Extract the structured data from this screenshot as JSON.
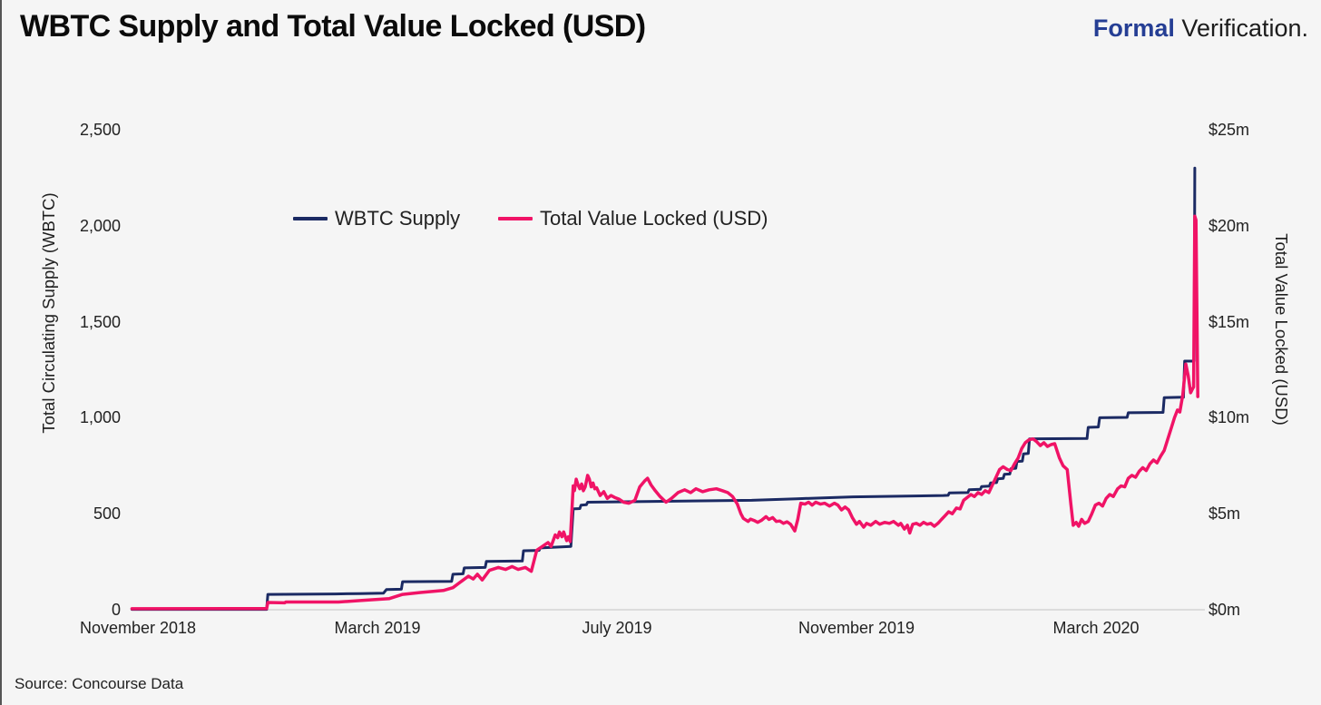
{
  "page": {
    "title": "WBTC Supply and Total Value Locked (USD)",
    "brand_bold": "Formal",
    "brand_light": "Verification.",
    "source": "Source: Concourse Data"
  },
  "colors": {
    "background": "#f5f5f5",
    "wbtc_supply_line": "#1b2a63",
    "tvl_line": "#f01366",
    "brand_navy": "#253e94",
    "axis_line": "#dcdcdc",
    "left_border": "#555555"
  },
  "chart_data": {
    "type": "line",
    "title": "WBTC Supply and Total Value Locked (USD)",
    "grid": false,
    "legend_position": "top-center-inside",
    "x_unit": "months since November 2018",
    "x_range": [
      -0.1,
      17.7
    ],
    "x_tick_labels": [
      "November 2018",
      "March 2019",
      "July 2019",
      "November 2019",
      "March 2020"
    ],
    "x_ticks_m": [
      0,
      4,
      8,
      12,
      16
    ],
    "y_left": {
      "label": "Total Circulating Supply (WBTC)",
      "range": [
        0,
        2500
      ],
      "tick_labels": [
        "2,500",
        "2,000",
        "1,500",
        "1,000",
        "500",
        "0"
      ]
    },
    "y_right": {
      "label": "Total Value Locked (USD)",
      "range": [
        0,
        25
      ],
      "tick_labels": [
        "$25m",
        "$20m",
        "$15m",
        "$10m",
        "$5m",
        "$0m"
      ]
    },
    "legend": [
      {
        "label": "WBTC Supply",
        "color": "#1b2a63"
      },
      {
        "label": "Total Value Locked (USD)",
        "color": "#f01366"
      }
    ],
    "series": [
      {
        "name": "WBTC Supply",
        "axis": "left",
        "color": "#1b2a63",
        "width": 3,
        "points": [
          [
            -0.1,
            2
          ],
          [
            2.15,
            2
          ],
          [
            2.17,
            80
          ],
          [
            3.3,
            82
          ],
          [
            3.7,
            84
          ],
          [
            4.1,
            86
          ],
          [
            4.15,
            105
          ],
          [
            4.4,
            107
          ],
          [
            4.42,
            146
          ],
          [
            5.24,
            148
          ],
          [
            5.26,
            185
          ],
          [
            5.43,
            187
          ],
          [
            5.45,
            218
          ],
          [
            5.8,
            220
          ],
          [
            5.82,
            252
          ],
          [
            6.42,
            254
          ],
          [
            6.44,
            307
          ],
          [
            6.7,
            309
          ],
          [
            6.72,
            322
          ],
          [
            7.23,
            330
          ],
          [
            7.27,
            525
          ],
          [
            7.38,
            527
          ],
          [
            7.4,
            545
          ],
          [
            7.49,
            547
          ],
          [
            7.51,
            560
          ],
          [
            8.3,
            563
          ],
          [
            10.25,
            570
          ],
          [
            11.0,
            578
          ],
          [
            11.94,
            588
          ],
          [
            13.45,
            595
          ],
          [
            13.53,
            596
          ],
          [
            13.55,
            608
          ],
          [
            13.86,
            610
          ],
          [
            13.88,
            625
          ],
          [
            14.07,
            627
          ],
          [
            14.09,
            642
          ],
          [
            14.22,
            644
          ],
          [
            14.24,
            660
          ],
          [
            14.34,
            662
          ],
          [
            14.36,
            682
          ],
          [
            14.45,
            684
          ],
          [
            14.47,
            705
          ],
          [
            14.56,
            707
          ],
          [
            14.58,
            735
          ],
          [
            14.66,
            737
          ],
          [
            14.68,
            772
          ],
          [
            14.77,
            774
          ],
          [
            14.79,
            812
          ],
          [
            14.87,
            814
          ],
          [
            14.89,
            890
          ],
          [
            15.85,
            892
          ],
          [
            15.87,
            950
          ],
          [
            16.04,
            952
          ],
          [
            16.06,
            1000
          ],
          [
            16.52,
            1002
          ],
          [
            16.54,
            1026
          ],
          [
            17.12,
            1028
          ],
          [
            17.14,
            1105
          ],
          [
            17.46,
            1107
          ],
          [
            17.48,
            1295
          ],
          [
            17.64,
            1295
          ],
          [
            17.65,
            2300
          ]
        ]
      },
      {
        "name": "Total Value Locked (USD)",
        "axis": "right",
        "color": "#f01366",
        "width": 3.5,
        "points": [
          [
            -0.1,
            0.05
          ],
          [
            2.15,
            0.06
          ],
          [
            2.17,
            0.38
          ],
          [
            2.45,
            0.36
          ],
          [
            2.47,
            0.4
          ],
          [
            3.35,
            0.4
          ],
          [
            3.74,
            0.48
          ],
          [
            4.2,
            0.58
          ],
          [
            4.42,
            0.8
          ],
          [
            4.72,
            0.9
          ],
          [
            5.1,
            1.0
          ],
          [
            5.26,
            1.15
          ],
          [
            5.41,
            1.5
          ],
          [
            5.52,
            1.75
          ],
          [
            5.6,
            1.6
          ],
          [
            5.67,
            1.85
          ],
          [
            5.75,
            1.55
          ],
          [
            5.87,
            2.05
          ],
          [
            6.02,
            2.2
          ],
          [
            6.14,
            2.1
          ],
          [
            6.25,
            2.25
          ],
          [
            6.35,
            2.1
          ],
          [
            6.47,
            2.2
          ],
          [
            6.57,
            2.0
          ],
          [
            6.66,
            3.1
          ],
          [
            6.78,
            3.35
          ],
          [
            6.85,
            3.5
          ],
          [
            6.9,
            3.3
          ],
          [
            6.97,
            3.9
          ],
          [
            7.01,
            3.75
          ],
          [
            7.04,
            4.05
          ],
          [
            7.08,
            3.8
          ],
          [
            7.11,
            4.05
          ],
          [
            7.16,
            3.6
          ],
          [
            7.19,
            3.8
          ],
          [
            7.22,
            3.55
          ],
          [
            7.27,
            6.45
          ],
          [
            7.29,
            6.2
          ],
          [
            7.32,
            6.8
          ],
          [
            7.35,
            6.5
          ],
          [
            7.38,
            6.3
          ],
          [
            7.41,
            6.55
          ],
          [
            7.44,
            6.2
          ],
          [
            7.47,
            6.4
          ],
          [
            7.51,
            7.0
          ],
          [
            7.54,
            6.8
          ],
          [
            7.57,
            6.4
          ],
          [
            7.6,
            6.6
          ],
          [
            7.63,
            6.3
          ],
          [
            7.66,
            6.35
          ],
          [
            7.72,
            5.95
          ],
          [
            7.78,
            6.15
          ],
          [
            7.84,
            5.8
          ],
          [
            7.9,
            5.95
          ],
          [
            7.96,
            5.85
          ],
          [
            8.04,
            5.75
          ],
          [
            8.11,
            5.6
          ],
          [
            8.2,
            5.55
          ],
          [
            8.3,
            5.7
          ],
          [
            8.38,
            6.4
          ],
          [
            8.46,
            6.7
          ],
          [
            8.51,
            6.85
          ],
          [
            8.57,
            6.5
          ],
          [
            8.64,
            6.2
          ],
          [
            8.72,
            5.9
          ],
          [
            8.82,
            5.6
          ],
          [
            8.91,
            5.8
          ],
          [
            9.02,
            6.1
          ],
          [
            9.13,
            6.25
          ],
          [
            9.23,
            6.1
          ],
          [
            9.32,
            6.3
          ],
          [
            9.43,
            6.15
          ],
          [
            9.54,
            6.25
          ],
          [
            9.66,
            6.3
          ],
          [
            9.76,
            6.2
          ],
          [
            9.85,
            6.1
          ],
          [
            9.93,
            5.9
          ],
          [
            10.01,
            5.5
          ],
          [
            10.07,
            5.0
          ],
          [
            10.11,
            4.76
          ],
          [
            10.19,
            4.6
          ],
          [
            10.23,
            4.72
          ],
          [
            10.29,
            4.65
          ],
          [
            10.35,
            4.55
          ],
          [
            10.41,
            4.65
          ],
          [
            10.49,
            4.85
          ],
          [
            10.54,
            4.7
          ],
          [
            10.6,
            4.8
          ],
          [
            10.66,
            4.6
          ],
          [
            10.72,
            4.62
          ],
          [
            10.78,
            4.5
          ],
          [
            10.84,
            4.58
          ],
          [
            10.9,
            4.45
          ],
          [
            10.97,
            4.1
          ],
          [
            11.02,
            4.7
          ],
          [
            11.07,
            5.55
          ],
          [
            11.14,
            5.5
          ],
          [
            11.2,
            5.6
          ],
          [
            11.26,
            5.45
          ],
          [
            11.32,
            5.6
          ],
          [
            11.4,
            5.5
          ],
          [
            11.47,
            5.55
          ],
          [
            11.55,
            5.4
          ],
          [
            11.63,
            5.55
          ],
          [
            11.69,
            5.45
          ],
          [
            11.75,
            5.2
          ],
          [
            11.81,
            5.35
          ],
          [
            11.87,
            5.2
          ],
          [
            11.93,
            4.8
          ],
          [
            12.0,
            4.45
          ],
          [
            12.05,
            4.6
          ],
          [
            12.12,
            4.3
          ],
          [
            12.17,
            4.5
          ],
          [
            12.24,
            4.4
          ],
          [
            12.32,
            4.6
          ],
          [
            12.39,
            4.45
          ],
          [
            12.47,
            4.55
          ],
          [
            12.55,
            4.5
          ],
          [
            12.62,
            4.6
          ],
          [
            12.7,
            4.4
          ],
          [
            12.74,
            4.5
          ],
          [
            12.8,
            4.2
          ],
          [
            12.85,
            4.4
          ],
          [
            12.89,
            4.0
          ],
          [
            12.94,
            4.45
          ],
          [
            13.0,
            4.5
          ],
          [
            13.06,
            4.4
          ],
          [
            13.12,
            4.55
          ],
          [
            13.18,
            4.45
          ],
          [
            13.24,
            4.5
          ],
          [
            13.3,
            4.35
          ],
          [
            13.36,
            4.5
          ],
          [
            13.42,
            4.7
          ],
          [
            13.48,
            4.9
          ],
          [
            13.54,
            5.1
          ],
          [
            13.6,
            5.0
          ],
          [
            13.67,
            5.3
          ],
          [
            13.73,
            5.25
          ],
          [
            13.79,
            5.7
          ],
          [
            13.85,
            5.85
          ],
          [
            13.91,
            6.0
          ],
          [
            13.97,
            5.9
          ],
          [
            14.03,
            6.1
          ],
          [
            14.09,
            6.0
          ],
          [
            14.15,
            6.2
          ],
          [
            14.21,
            6.1
          ],
          [
            14.33,
            6.9
          ],
          [
            14.39,
            7.3
          ],
          [
            14.45,
            7.45
          ],
          [
            14.52,
            7.3
          ],
          [
            14.58,
            7.25
          ],
          [
            14.64,
            7.6
          ],
          [
            14.7,
            7.9
          ],
          [
            14.76,
            8.4
          ],
          [
            14.82,
            8.7
          ],
          [
            14.88,
            8.85
          ],
          [
            14.95,
            8.9
          ],
          [
            15.01,
            8.75
          ],
          [
            15.07,
            8.55
          ],
          [
            15.13,
            8.7
          ],
          [
            15.19,
            8.5
          ],
          [
            15.25,
            8.6
          ],
          [
            15.31,
            8.65
          ],
          [
            15.39,
            7.9
          ],
          [
            15.45,
            7.5
          ],
          [
            15.52,
            7.3
          ],
          [
            15.58,
            5.5
          ],
          [
            15.62,
            4.4
          ],
          [
            15.67,
            4.55
          ],
          [
            15.71,
            4.35
          ],
          [
            15.76,
            4.7
          ],
          [
            15.81,
            4.5
          ],
          [
            15.87,
            4.6
          ],
          [
            15.93,
            5.0
          ],
          [
            15.99,
            5.45
          ],
          [
            16.05,
            5.55
          ],
          [
            16.11,
            5.4
          ],
          [
            16.17,
            5.8
          ],
          [
            16.23,
            6.0
          ],
          [
            16.29,
            5.9
          ],
          [
            16.36,
            6.3
          ],
          [
            16.42,
            6.45
          ],
          [
            16.48,
            6.4
          ],
          [
            16.54,
            6.85
          ],
          [
            16.6,
            7.0
          ],
          [
            16.66,
            6.9
          ],
          [
            16.72,
            7.2
          ],
          [
            16.78,
            7.4
          ],
          [
            16.84,
            7.25
          ],
          [
            16.9,
            7.6
          ],
          [
            16.96,
            7.8
          ],
          [
            17.02,
            7.65
          ],
          [
            17.08,
            8.0
          ],
          [
            17.14,
            8.3
          ],
          [
            17.2,
            8.9
          ],
          [
            17.26,
            9.5
          ],
          [
            17.31,
            10.0
          ],
          [
            17.36,
            10.4
          ],
          [
            17.4,
            10.3
          ],
          [
            17.45,
            11.2
          ],
          [
            17.5,
            12.8
          ],
          [
            17.54,
            12.2
          ],
          [
            17.58,
            11.3
          ],
          [
            17.61,
            11.5
          ],
          [
            17.63,
            11.6
          ],
          [
            17.65,
            20.5
          ],
          [
            17.67,
            20.3
          ],
          [
            17.7,
            11.1
          ]
        ]
      }
    ]
  }
}
